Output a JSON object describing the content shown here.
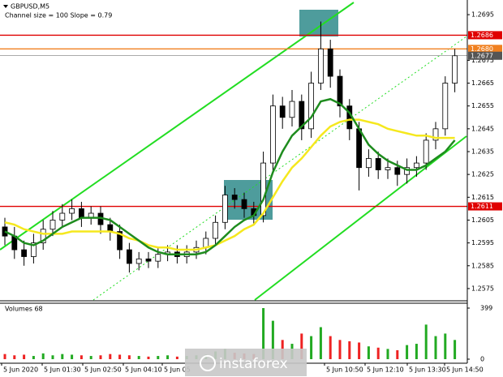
{
  "chart_data": {
    "type": "candlestick",
    "title": "GBPUSD,M5",
    "subtitle": "Channel size = 100 Slope = 0.79",
    "open": [
      1.2602,
      1.2598,
      1.2592,
      1.2589,
      1.2595,
      1.2601,
      1.2605,
      1.2608,
      1.261,
      1.2606,
      1.2608,
      1.2603,
      1.26,
      1.2592,
      1.2586,
      1.2588,
      1.2587,
      1.259,
      1.2591,
      1.2589,
      1.2591,
      1.2593,
      1.2597,
      1.2604,
      1.2616,
      1.2614,
      1.261,
      1.2607,
      1.263,
      1.2655,
      1.265,
      1.2657,
      1.2645,
      1.2665,
      1.268,
      1.2668,
      1.2655,
      1.2645,
      1.2628,
      1.2632,
      1.2627,
      1.2628,
      1.2625,
      1.2628,
      1.263,
      1.264,
      1.2645,
      1.2665
    ],
    "high": [
      1.2606,
      1.2602,
      1.2596,
      1.2599,
      1.2605,
      1.2609,
      1.2612,
      1.2614,
      1.2613,
      1.2611,
      1.2611,
      1.2606,
      1.2603,
      1.2595,
      1.2591,
      1.2591,
      1.2593,
      1.2594,
      1.2594,
      1.2594,
      1.2596,
      1.26,
      1.2607,
      1.262,
      1.2619,
      1.2617,
      1.2613,
      1.2635,
      1.266,
      1.2659,
      1.2662,
      1.266,
      1.267,
      1.2692,
      1.2684,
      1.2671,
      1.2658,
      1.2648,
      1.2636,
      1.2635,
      1.2632,
      1.2631,
      1.2632,
      1.2633,
      1.2643,
      1.2648,
      1.2668,
      1.268
    ],
    "low": [
      1.2594,
      1.2588,
      1.2585,
      1.2586,
      1.2592,
      1.2598,
      1.2602,
      1.2605,
      1.2602,
      1.2603,
      1.2599,
      1.2596,
      1.2588,
      1.2582,
      1.2583,
      1.2584,
      1.2584,
      1.2587,
      1.2586,
      1.2586,
      1.2588,
      1.259,
      1.2594,
      1.2601,
      1.261,
      1.2606,
      1.2603,
      1.2604,
      1.2626,
      1.2645,
      1.2646,
      1.264,
      1.2641,
      1.2662,
      1.2663,
      1.265,
      1.264,
      1.2618,
      1.2624,
      1.2623,
      1.2623,
      1.262,
      1.2621,
      1.2624,
      1.2627,
      1.2636,
      1.2642,
      1.2661
    ],
    "close": [
      1.2598,
      1.2592,
      1.2589,
      1.2595,
      1.2601,
      1.2605,
      1.2608,
      1.261,
      1.2606,
      1.2608,
      1.2603,
      1.26,
      1.2592,
      1.2586,
      1.2588,
      1.2587,
      1.259,
      1.2591,
      1.2589,
      1.2591,
      1.2593,
      1.2597,
      1.2604,
      1.2616,
      1.2614,
      1.261,
      1.2607,
      1.263,
      1.2655,
      1.265,
      1.2657,
      1.2645,
      1.2665,
      1.268,
      1.2668,
      1.2655,
      1.2645,
      1.2628,
      1.2632,
      1.2627,
      1.2628,
      1.2625,
      1.2628,
      1.263,
      1.264,
      1.2645,
      1.2665,
      1.2677
    ],
    "ma_fast": {
      "color": "#1e8c1e",
      "values": [
        1.26,
        1.2598,
        1.2595,
        1.2594,
        1.2596,
        1.2599,
        1.2602,
        1.2604,
        1.2606,
        1.2606,
        1.2606,
        1.2605,
        1.2602,
        1.2599,
        1.2596,
        1.2593,
        1.2591,
        1.259,
        1.259,
        1.259,
        1.259,
        1.2591,
        1.2594,
        1.2598,
        1.2602,
        1.2605,
        1.2607,
        1.2614,
        1.2626,
        1.2635,
        1.2642,
        1.2646,
        1.265,
        1.2657,
        1.2658,
        1.2656,
        1.2652,
        1.2645,
        1.2638,
        1.2634,
        1.2631,
        1.2629,
        1.2627,
        1.2627,
        1.2629,
        1.2632,
        1.2635,
        1.264
      ]
    },
    "ma_slow": {
      "color": "#f5e81e",
      "values": [
        1.2604,
        1.2603,
        1.2601,
        1.26,
        1.2599,
        1.2599,
        1.2599,
        1.26,
        1.26,
        1.26,
        1.26,
        1.26,
        1.2599,
        1.2597,
        1.2596,
        1.2594,
        1.2593,
        1.2593,
        1.2592,
        1.2592,
        1.2592,
        1.2593,
        1.2594,
        1.2596,
        1.2598,
        1.2601,
        1.2603,
        1.2608,
        1.2615,
        1.2622,
        1.2628,
        1.2632,
        1.2637,
        1.2642,
        1.2646,
        1.2648,
        1.2649,
        1.2649,
        1.2648,
        1.2647,
        1.2645,
        1.2644,
        1.2643,
        1.2642,
        1.2642,
        1.2641,
        1.2641,
        1.2641
      ]
    },
    "ylim": [
      1.257,
      1.27
    ],
    "yticks": [
      1.2695,
      1.2675,
      1.2665,
      1.2655,
      1.2645,
      1.2635,
      1.2625,
      1.2615,
      1.2605,
      1.2595,
      1.2585,
      1.2575
    ],
    "levels": [
      {
        "value": 1.2686,
        "color": "#e00000"
      },
      {
        "value": 1.268,
        "label": "1.2680",
        "color": "#f08020"
      },
      {
        "value": 1.2677,
        "color": "#555555"
      },
      {
        "value": 1.2611,
        "color": "#e00000"
      }
    ],
    "volume_title": "Volumes 68",
    "volumes": [
      40,
      30,
      35,
      25,
      45,
      30,
      40,
      35,
      30,
      25,
      30,
      40,
      35,
      30,
      25,
      20,
      25,
      30,
      20,
      25,
      30,
      35,
      60,
      80,
      50,
      45,
      40,
      399,
      300,
      150,
      120,
      200,
      180,
      250,
      180,
      150,
      140,
      130,
      100,
      90,
      80,
      70,
      110,
      120,
      270,
      180,
      200,
      150
    ],
    "volume_ylim": [
      0,
      399
    ],
    "volume_yticks": [
      399,
      0
    ],
    "xlabels": [
      "5 Jun 2020",
      "5 Jun 01:30",
      "5 Jun 02:50",
      "5 Jun 04:10",
      "5 Jun 05",
      "5 Jun 10:50",
      "5 Jun 12:10",
      "5 Jun 13:30",
      "5 Jun 14:50"
    ],
    "watermark": "instaforex"
  }
}
